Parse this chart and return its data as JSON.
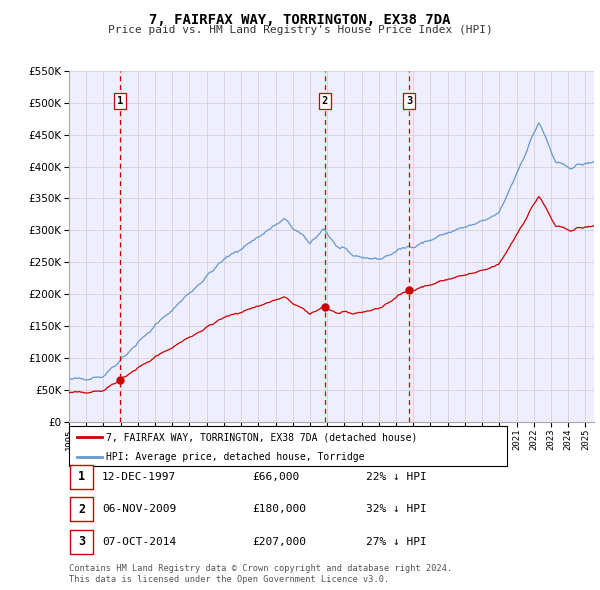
{
  "title": "7, FAIRFAX WAY, TORRINGTON, EX38 7DA",
  "subtitle": "Price paid vs. HM Land Registry's House Price Index (HPI)",
  "legend_label_red": "7, FAIRFAX WAY, TORRINGTON, EX38 7DA (detached house)",
  "legend_label_blue": "HPI: Average price, detached house, Torridge",
  "transactions": [
    {
      "num": 1,
      "date": "12-DEC-1997",
      "year": 1997.95,
      "price": 66000,
      "hpi_pct": "22% ↓ HPI"
    },
    {
      "num": 2,
      "date": "06-NOV-2009",
      "year": 2009.85,
      "price": 180000,
      "hpi_pct": "32% ↓ HPI"
    },
    {
      "num": 3,
      "date": "07-OCT-2014",
      "year": 2014.77,
      "price": 207000,
      "hpi_pct": "27% ↓ HPI"
    }
  ],
  "footer1": "Contains HM Land Registry data © Crown copyright and database right 2024.",
  "footer2": "This data is licensed under the Open Government Licence v3.0.",
  "ylim": [
    0,
    550000
  ],
  "yticks": [
    0,
    50000,
    100000,
    150000,
    200000,
    250000,
    300000,
    350000,
    400000,
    450000,
    500000,
    550000
  ],
  "xlim_start": 1995.0,
  "xlim_end": 2025.5,
  "red_color": "#cc0000",
  "blue_color": "#6699cc",
  "dashed_color": "#cc0000",
  "grid_color": "#cccccc",
  "background_color": "#eeeeff",
  "plot_bg": "#ffffff"
}
